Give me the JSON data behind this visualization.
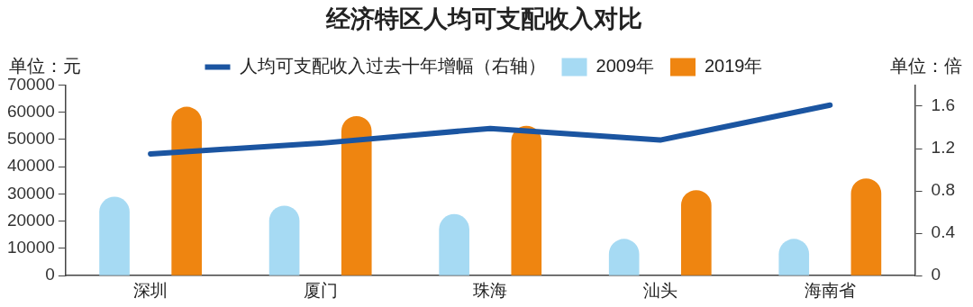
{
  "chart_data": {
    "type": "bar",
    "title": "经济特区人均可支配收入对比",
    "ylabel": "单位：元",
    "y2label": "单位：倍",
    "categories": [
      "深圳",
      "厦门",
      "珠海",
      "汕头",
      "海南省"
    ],
    "series": [
      {
        "name": "2009年",
        "color": "#a6daf3",
        "values": [
          29000,
          25700,
          22600,
          13500,
          13500
        ]
      },
      {
        "name": "2019年",
        "color": "#ef8510",
        "values": [
          62000,
          58600,
          55000,
          31400,
          35700
        ]
      },
      {
        "name": "人均可支配收入过去十年增幅（右轴）",
        "type": "line",
        "axis": "y2",
        "color": "#1b55a1",
        "values": [
          1.15,
          1.25,
          1.39,
          1.28,
          1.61
        ]
      }
    ],
    "ylim": [
      0,
      70000
    ],
    "yticks": [
      0,
      10000,
      20000,
      30000,
      40000,
      50000,
      60000,
      70000
    ],
    "y2lim": [
      0,
      1.8
    ],
    "y2ticks": [
      0,
      0.4,
      0.8,
      1.2,
      1.6
    ],
    "grid": false,
    "legend": "top",
    "marker": "none"
  }
}
